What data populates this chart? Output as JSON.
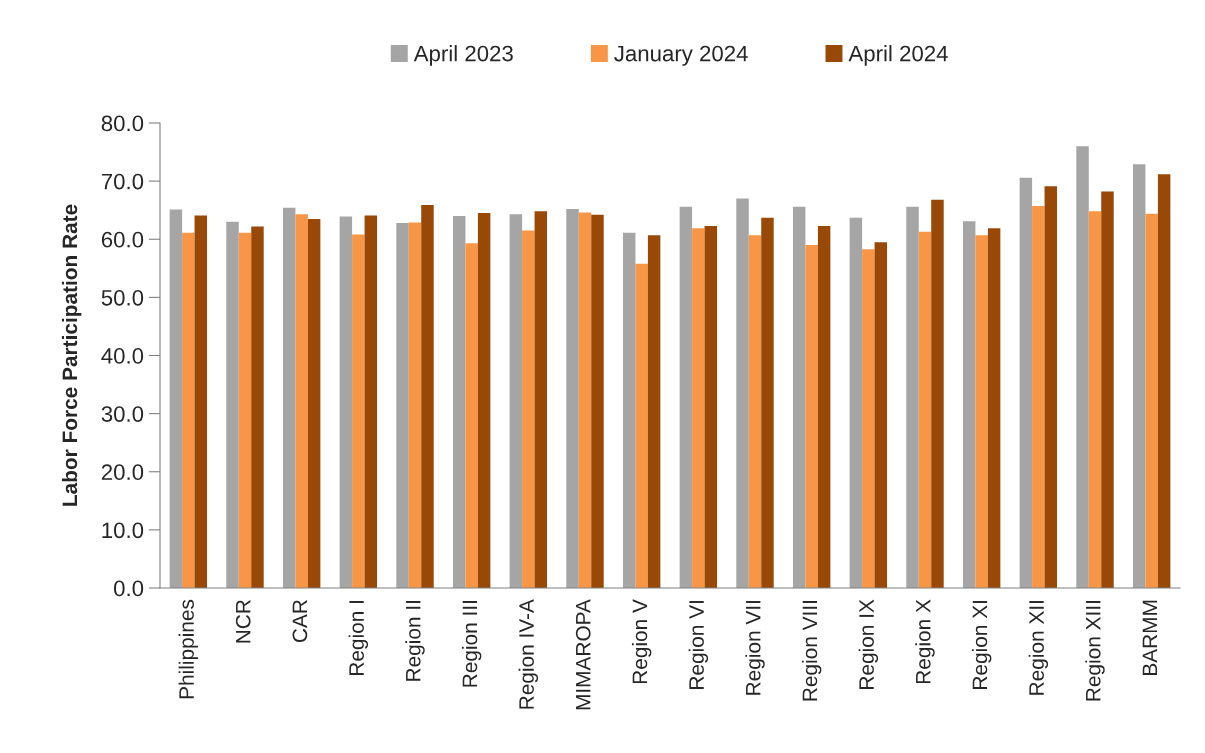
{
  "chart_data": {
    "type": "bar",
    "ylabel": "Labor Force Participation Rate",
    "categories": [
      "Philippines",
      "NCR",
      "CAR",
      "Region I",
      "Region II",
      "Region III",
      "Region IV-A",
      "MIMAROPA",
      "Region V",
      "Region VI",
      "Region VII",
      "Region VIII",
      "Region IX",
      "Region X",
      "Region XI",
      "Region XII",
      "Region XIII",
      "BARMM"
    ],
    "series": [
      {
        "name": "April 2023",
        "color": "#a5a5a5",
        "values": [
          65.1,
          63.0,
          65.4,
          63.9,
          62.8,
          64.0,
          64.3,
          65.2,
          61.1,
          65.6,
          67.0,
          65.6,
          63.7,
          65.6,
          63.1,
          70.6,
          76.0,
          72.9
        ]
      },
      {
        "name": "January 2024",
        "color": "#f79646",
        "values": [
          61.1,
          61.1,
          64.3,
          60.8,
          62.9,
          59.3,
          61.5,
          64.6,
          55.8,
          61.9,
          60.7,
          59.0,
          58.3,
          61.3,
          60.7,
          65.7,
          64.8,
          64.4
        ]
      },
      {
        "name": "April 2024",
        "color": "#984807",
        "values": [
          64.1,
          62.2,
          63.5,
          64.1,
          65.9,
          64.5,
          64.8,
          64.2,
          60.7,
          62.3,
          63.7,
          62.3,
          59.5,
          66.8,
          61.9,
          69.1,
          68.2,
          71.2
        ]
      }
    ],
    "ylim": [
      0,
      80
    ],
    "yticks": [
      {
        "value": 0,
        "label": "0.0"
      },
      {
        "value": 10,
        "label": "10.0"
      },
      {
        "value": 20,
        "label": "20.0"
      },
      {
        "value": 30,
        "label": "30.0"
      },
      {
        "value": 40,
        "label": "40.0"
      },
      {
        "value": 50,
        "label": "50.0"
      },
      {
        "value": 60,
        "label": "60.0"
      },
      {
        "value": 70,
        "label": "70.0"
      },
      {
        "value": 80,
        "label": "80.0"
      }
    ],
    "grid": false,
    "legend": "top"
  }
}
